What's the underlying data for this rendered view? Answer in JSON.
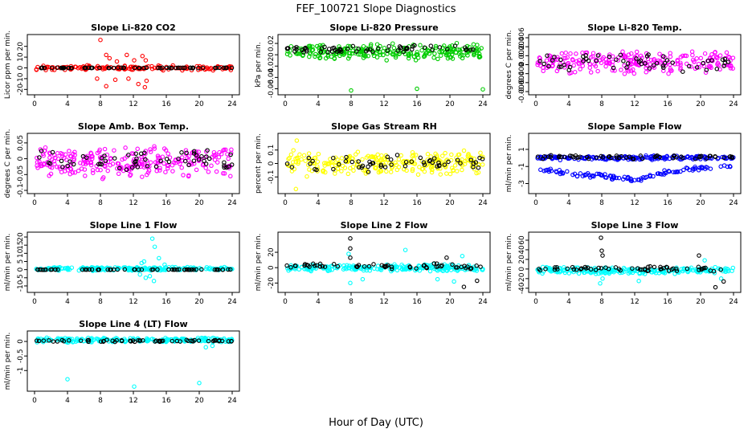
{
  "page_title": "FEF_100721  Slope Diagnostics",
  "x_axis_label": "Hour of Day (UTC)",
  "x_ticks": [
    0,
    4,
    8,
    12,
    16,
    20,
    24
  ],
  "colors": {
    "black": "#000000",
    "red": "#ff0000",
    "green": "#00cc00",
    "magenta": "#ff00ff",
    "yellow": "#ffff00",
    "blue": "#0000ff",
    "cyan": "#00ffff"
  },
  "chart_data": [
    {
      "type": "scatter",
      "title": "Slope Li-820 CO2",
      "ylabel": "Licor ppm per min.",
      "xlim": [
        0,
        24
      ],
      "ylim": [
        -22,
        28
      ],
      "yticks": [
        -20,
        -10,
        0,
        10,
        20
      ],
      "color": "red",
      "series": [
        {
          "kind": "band",
          "center": 0,
          "spread": 2.5,
          "count": 150,
          "seed": 11,
          "color": "red",
          "extra": [
            [
              8.0,
              26
            ],
            [
              8.7,
              12
            ],
            [
              9.1,
              9
            ],
            [
              10.0,
              6
            ],
            [
              11.2,
              12
            ],
            [
              12.1,
              7
            ],
            [
              13.1,
              11
            ],
            [
              13.5,
              7
            ],
            [
              7.6,
              -10
            ],
            [
              8.7,
              -17
            ],
            [
              9.8,
              -11
            ],
            [
              11.4,
              -10
            ],
            [
              12.6,
              -15
            ],
            [
              13.4,
              -18
            ],
            [
              13.6,
              -12
            ]
          ]
        },
        {
          "kind": "band",
          "center": 0,
          "spread": 0.3,
          "count": 65,
          "seed": 12,
          "color": "black"
        }
      ]
    },
    {
      "type": "scatter",
      "title": "Slope Li-820 Pressure",
      "ylabel": "kPa per min.",
      "xlim": [
        0,
        24
      ],
      "ylim": [
        -0.065,
        0.03
      ],
      "yticks": [
        -0.06,
        -0.04,
        -0.02,
        0.0,
        0.02
      ],
      "color": "green",
      "series": [
        {
          "kind": "band",
          "center": 0.005,
          "spread": 0.016,
          "count": 240,
          "seed": 21,
          "color": "green",
          "extra": [
            [
              8.0,
              -0.063
            ],
            [
              16.0,
              -0.06
            ],
            [
              24.0,
              -0.061
            ]
          ]
        },
        {
          "kind": "band",
          "center": 0.01,
          "spread": 0.008,
          "count": 60,
          "seed": 22,
          "color": "black"
        }
      ]
    },
    {
      "type": "scatter",
      "title": "Slope Li-820 Temp.",
      "ylabel": "degrees C per min.",
      "xlim": [
        0,
        24
      ],
      "ylim": [
        -0.006,
        0.006
      ],
      "yticks": [
        -0.006,
        -0.004,
        -0.002,
        0.0,
        0.002,
        0.004,
        0.006
      ],
      "color": "magenta",
      "series": [
        {
          "kind": "band",
          "center": 0.0005,
          "spread": 0.0028,
          "count": 230,
          "seed": 31,
          "color": "magenta"
        },
        {
          "kind": "band",
          "center": 0.0004,
          "spread": 0.0022,
          "count": 55,
          "seed": 32,
          "color": "black"
        }
      ]
    },
    {
      "type": "scatter",
      "title": "Slope Amb. Box Temp.",
      "ylabel": "degrees C per min.",
      "xlim": [
        0,
        24
      ],
      "ylim": [
        -0.1,
        0.07
      ],
      "yticks": [
        -0.1,
        -0.05,
        0.0,
        0.05
      ],
      "color": "magenta",
      "series": [
        {
          "kind": "band",
          "center": -0.01,
          "spread": 0.055,
          "count": 260,
          "seed": 41,
          "color": "magenta"
        },
        {
          "kind": "band",
          "center": -0.005,
          "spread": 0.04,
          "count": 60,
          "seed": 42,
          "color": "black"
        }
      ]
    },
    {
      "type": "scatter",
      "title": "Slope Gas Stream RH",
      "ylabel": "percent per min.",
      "xlim": [
        0,
        24
      ],
      "ylim": [
        -0.2,
        0.2
      ],
      "yticks": [
        -0.1,
        0.0,
        0.1
      ],
      "color": "yellow",
      "series": [
        {
          "kind": "band",
          "center": 0.0,
          "spread": 0.1,
          "count": 260,
          "seed": 51,
          "color": "yellow",
          "extra": [
            [
              1.3,
              -0.19
            ],
            [
              1.4,
              0.17
            ]
          ]
        },
        {
          "kind": "band",
          "center": 0.0,
          "spread": 0.07,
          "count": 55,
          "seed": 52,
          "color": "black"
        }
      ]
    },
    {
      "type": "scatter",
      "title": "Slope Sample Flow",
      "ylabel": "ml/min per min.",
      "xlim": [
        0,
        24
      ],
      "ylim": [
        -3.8,
        2.5
      ],
      "yticks": [
        -3,
        -1,
        1
      ],
      "color": "blue",
      "series": [
        {
          "kind": "band",
          "center": 0.0,
          "spread": 0.3,
          "count": 170,
          "seed": 61,
          "color": "blue"
        },
        {
          "kind": "trend",
          "points": [
            [
              0.5,
              -1.3
            ],
            [
              4,
              -1.9
            ],
            [
              8,
              -2.1
            ],
            [
              12,
              -2.6
            ],
            [
              14,
              -2.1
            ],
            [
              16,
              -1.6
            ],
            [
              20,
              -1.2
            ],
            [
              24,
              -1.0
            ]
          ],
          "spread": 0.3,
          "count": 110,
          "seed": 63,
          "color": "blue"
        },
        {
          "kind": "band",
          "center": 0.1,
          "spread": 0.25,
          "count": 60,
          "seed": 62,
          "color": "black"
        }
      ]
    },
    {
      "type": "scatter",
      "title": "Slope Line 1 Flow",
      "ylabel": "ml/min per min.",
      "xlim": [
        0,
        24
      ],
      "ylim": [
        -12,
        21
      ],
      "yticks": [
        -10,
        -5,
        0,
        5,
        10,
        15,
        20
      ],
      "color": "cyan",
      "series": [
        {
          "kind": "band",
          "center": 0.5,
          "spread": 1.3,
          "count": 220,
          "seed": 71,
          "color": "cyan",
          "extra": [
            [
              14.3,
              19
            ],
            [
              14.6,
              14
            ],
            [
              13.0,
              4
            ],
            [
              13.5,
              -5
            ],
            [
              14.0,
              -4
            ],
            [
              15.1,
              7
            ],
            [
              14.5,
              -7
            ],
            [
              15.8,
              3
            ],
            [
              12.8,
              -3
            ],
            [
              13.3,
              5
            ]
          ]
        },
        {
          "kind": "band",
          "center": 0.0,
          "spread": 0.15,
          "count": 60,
          "seed": 72,
          "color": "black"
        }
      ]
    },
    {
      "type": "scatter",
      "title": "Slope Line 2 Flow",
      "ylabel": "ml/min per min.",
      "xlim": [
        0,
        24
      ],
      "ylim": [
        -28,
        42
      ],
      "yticks": [
        -20,
        0,
        20
      ],
      "color": "cyan",
      "series": [
        {
          "kind": "band",
          "center": 0.0,
          "spread": 5,
          "count": 230,
          "seed": 81,
          "color": "cyan",
          "extra": [
            [
              7.7,
              18
            ],
            [
              7.9,
              -20
            ],
            [
              9.4,
              -15
            ],
            [
              14.6,
              23
            ],
            [
              18.5,
              -15
            ],
            [
              21.5,
              15
            ],
            [
              20.5,
              -18
            ]
          ]
        },
        {
          "kind": "band",
          "center": 2.0,
          "spread": 4,
          "count": 58,
          "seed": 82,
          "color": "black",
          "extra": [
            [
              7.9,
              38
            ],
            [
              7.9,
              25
            ],
            [
              7.9,
              13
            ],
            [
              21.7,
              -25
            ],
            [
              23.3,
              -17
            ],
            [
              19.6,
              13
            ]
          ]
        }
      ]
    },
    {
      "type": "scatter",
      "title": "Slope Line 3 Flow",
      "ylabel": "ml/min per min.",
      "xlim": [
        0,
        24
      ],
      "ylim": [
        -42,
        70
      ],
      "yticks": [
        -40,
        -20,
        0,
        20,
        40,
        60
      ],
      "color": "cyan",
      "series": [
        {
          "kind": "band",
          "center": -3.0,
          "spread": 8,
          "count": 230,
          "seed": 91,
          "color": "cyan",
          "extra": [
            [
              7.8,
              -30
            ],
            [
              8.1,
              -20
            ],
            [
              12.5,
              -25
            ],
            [
              20.5,
              18
            ],
            [
              22.5,
              -20
            ]
          ]
        },
        {
          "kind": "band",
          "center": 0.0,
          "spread": 6,
          "count": 58,
          "seed": 92,
          "color": "black",
          "extra": [
            [
              7.9,
              65
            ],
            [
              8.0,
              38
            ],
            [
              8.1,
              28
            ],
            [
              19.8,
              28
            ],
            [
              22.8,
              -26
            ],
            [
              21.8,
              -38
            ]
          ]
        }
      ]
    },
    {
      "type": "scatter",
      "title": "Slope Line 4 (LT) Flow",
      "ylabel": "ml/min per min.",
      "xlim": [
        0,
        24
      ],
      "ylim": [
        -1.6,
        0.25
      ],
      "yticks": [
        -1.0,
        -0.5,
        0.0
      ],
      "color": "cyan",
      "series": [
        {
          "kind": "band",
          "center": 0.05,
          "spread": 0.09,
          "count": 230,
          "seed": 101,
          "color": "cyan",
          "extra": [
            [
              4.0,
              -1.3
            ],
            [
              12.1,
              -1.55
            ],
            [
              20.0,
              -1.43
            ],
            [
              20.8,
              -0.2
            ],
            [
              21.6,
              -0.15
            ]
          ]
        },
        {
          "kind": "band",
          "center": 0.02,
          "spread": 0.04,
          "count": 60,
          "seed": 102,
          "color": "black"
        }
      ]
    }
  ]
}
